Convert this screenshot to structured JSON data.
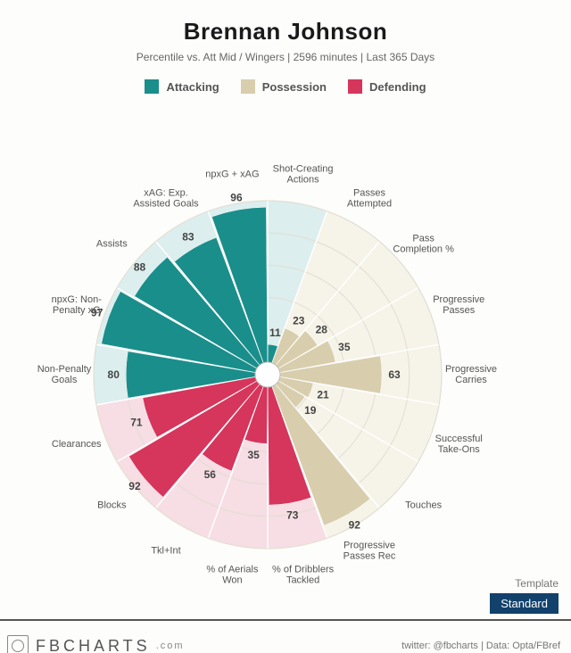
{
  "title": "Brennan Johnson",
  "subtitle": "Percentile vs. Att Mid / Wingers | 2596 minutes | Last 365 Days",
  "legend": [
    {
      "label": "Attacking",
      "color": "#1a8e8a"
    },
    {
      "label": "Possession",
      "color": "#d8cead"
    },
    {
      "label": "Defending",
      "color": "#d6355c"
    }
  ],
  "chart": {
    "type": "radial-bar",
    "background": "#fdfdfb",
    "inner_radius": 14,
    "outer_radius": 195,
    "rings": [
      20,
      40,
      60,
      80,
      100
    ],
    "ring_color": "#e2ddd2",
    "categories": {
      "attacking": {
        "fill": "#1a8e8a",
        "bg": "#dceeee"
      },
      "possession": {
        "fill": "#d8cead",
        "bg": "#f6f3e8"
      },
      "defending": {
        "fill": "#d6355c",
        "bg": "#f7dde4"
      }
    },
    "slices": [
      {
        "label": "Shot-Creating Actions",
        "value": 11,
        "cat": "attacking",
        "label_lines": [
          "Shot-Creating",
          "Actions"
        ]
      },
      {
        "label": "Passes Attempted",
        "value": 23,
        "cat": "possession",
        "label_lines": [
          "Passes",
          "Attempted"
        ]
      },
      {
        "label": "Pass Completion %",
        "value": 28,
        "cat": "possession",
        "label_lines": [
          "Pass",
          "Completion %"
        ]
      },
      {
        "label": "Progressive Passes",
        "value": 35,
        "cat": "possession",
        "label_lines": [
          "Progressive",
          "Passes"
        ]
      },
      {
        "label": "Progressive Carries",
        "value": 63,
        "cat": "possession",
        "label_lines": [
          "Progressive",
          "Carries"
        ]
      },
      {
        "label": "Successful Take-Ons",
        "value": 21,
        "cat": "possession",
        "label_lines": [
          "Successful",
          "Take-Ons"
        ]
      },
      {
        "label": "Touches",
        "value": 19,
        "cat": "possession",
        "label_lines": [
          "Touches"
        ]
      },
      {
        "label": "Progressive Passes Rec",
        "value": 92,
        "cat": "possession",
        "label_lines": [
          "Progressive",
          "Passes Rec"
        ]
      },
      {
        "label": "% of Dribblers Tackled",
        "value": 73,
        "cat": "defending",
        "label_lines": [
          "% of Dribblers",
          "Tackled"
        ]
      },
      {
        "label": "% of Aerials Won",
        "value": 35,
        "cat": "defending",
        "label_lines": [
          "% of Aerials",
          "Won"
        ]
      },
      {
        "label": "Tkl+Int",
        "value": 56,
        "cat": "defending",
        "label_lines": [
          "Tkl+Int"
        ]
      },
      {
        "label": "Blocks",
        "value": 92,
        "cat": "defending",
        "label_lines": [
          "Blocks"
        ]
      },
      {
        "label": "Clearances",
        "value": 71,
        "cat": "defending",
        "label_lines": [
          "Clearances"
        ]
      },
      {
        "label": "Non-Penalty Goals",
        "value": 80,
        "cat": "attacking",
        "label_lines": [
          "Non-Penalty",
          "Goals"
        ]
      },
      {
        "label": "npxG: Non-Penalty xG",
        "value": 97,
        "cat": "attacking",
        "label_lines": [
          "npxG: Non-",
          "Penalty xG"
        ]
      },
      {
        "label": "Assists",
        "value": 88,
        "cat": "attacking",
        "label_lines": [
          "Assists"
        ]
      },
      {
        "label": "xAG: Exp. Assisted Goals",
        "value": 83,
        "cat": "attacking",
        "label_lines": [
          "xAG: Exp.",
          "Assisted Goals"
        ]
      },
      {
        "label": "npxG + xAG",
        "value": 96,
        "cat": "attacking",
        "label_lines": [
          "npxG + xAG"
        ]
      }
    ],
    "start_angle_deg": -90,
    "label_radius": 228,
    "value_label_offset": 14
  },
  "template": {
    "label": "Template",
    "value": "Standard"
  },
  "brand": {
    "name": "FBCHARTS",
    "suffix": ".com"
  },
  "credits": "twitter: @fbcharts | Data: Opta/FBref"
}
